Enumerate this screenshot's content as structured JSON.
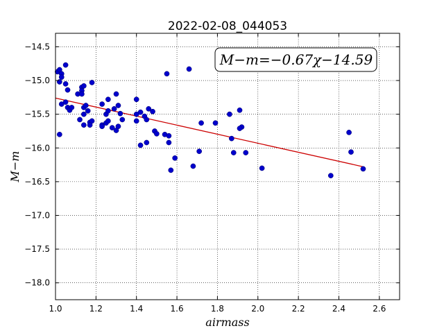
{
  "chart_data": {
    "type": "scatter",
    "title": "2022-02-08_044053",
    "xlabel": "airmass",
    "ylabel": "M−m",
    "annotation": "M−m=−0.67χ−14.59",
    "xlim": [
      1.0,
      2.7
    ],
    "ylim": [
      -18.25,
      -14.3
    ],
    "y_inverted": true,
    "grid": true,
    "xticks": [
      "1.0",
      "1.2",
      "1.4",
      "1.6",
      "1.8",
      "2.0",
      "2.2",
      "2.4",
      "2.6"
    ],
    "xtick_values": [
      1.0,
      1.2,
      1.4,
      1.6,
      1.8,
      2.0,
      2.2,
      2.4,
      2.6
    ],
    "yticks": [
      "−14.5",
      "−15.0",
      "−15.5",
      "−16.0",
      "−16.5",
      "−17.0",
      "−17.5",
      "−18.0"
    ],
    "ytick_values": [
      -14.5,
      -15.0,
      -15.5,
      -16.0,
      -16.5,
      -17.0,
      -17.5,
      -18.0
    ],
    "marker_color": "#0000cc",
    "fit_color": "#cc0000",
    "fit": {
      "slope": -0.67,
      "intercept": -14.59,
      "x_range": [
        1.0,
        2.52
      ]
    },
    "points": [
      [
        1.01,
        -14.87
      ],
      [
        1.02,
        -14.84
      ],
      [
        1.03,
        -14.9
      ],
      [
        1.03,
        -14.95
      ],
      [
        1.02,
        -15.02
      ],
      [
        1.05,
        -14.77
      ],
      [
        1.05,
        -15.05
      ],
      [
        1.06,
        -15.14
      ],
      [
        1.03,
        -15.35
      ],
      [
        1.05,
        -15.32
      ],
      [
        1.06,
        -15.4
      ],
      [
        1.07,
        -15.44
      ],
      [
        1.08,
        -15.4
      ],
      [
        1.02,
        -15.8
      ],
      [
        1.11,
        -15.2
      ],
      [
        1.13,
        -15.1
      ],
      [
        1.14,
        -15.08
      ],
      [
        1.13,
        -15.15
      ],
      [
        1.13,
        -15.2
      ],
      [
        1.18,
        -15.03
      ],
      [
        1.14,
        -15.4
      ],
      [
        1.15,
        -15.37
      ],
      [
        1.16,
        -15.45
      ],
      [
        1.14,
        -15.5
      ],
      [
        1.12,
        -15.58
      ],
      [
        1.14,
        -15.66
      ],
      [
        1.17,
        -15.62
      ],
      [
        1.18,
        -15.6
      ],
      [
        1.17,
        -15.66
      ],
      [
        1.23,
        -15.35
      ],
      [
        1.25,
        -15.5
      ],
      [
        1.26,
        -15.45
      ],
      [
        1.26,
        -15.28
      ],
      [
        1.3,
        -15.2
      ],
      [
        1.31,
        -15.37
      ],
      [
        1.29,
        -15.42
      ],
      [
        1.32,
        -15.49
      ],
      [
        1.23,
        -15.66
      ],
      [
        1.23,
        -15.68
      ],
      [
        1.25,
        -15.63
      ],
      [
        1.26,
        -15.6
      ],
      [
        1.28,
        -15.7
      ],
      [
        1.3,
        -15.74
      ],
      [
        1.31,
        -15.68
      ],
      [
        1.33,
        -15.58
      ],
      [
        1.4,
        -15.28
      ],
      [
        1.4,
        -15.5
      ],
      [
        1.42,
        -15.47
      ],
      [
        1.44,
        -15.53
      ],
      [
        1.4,
        -15.6
      ],
      [
        1.46,
        -15.42
      ],
      [
        1.48,
        -15.46
      ],
      [
        1.45,
        -15.58
      ],
      [
        1.49,
        -15.75
      ],
      [
        1.5,
        -15.79
      ],
      [
        1.42,
        -15.96
      ],
      [
        1.45,
        -15.92
      ],
      [
        1.54,
        -15.8
      ],
      [
        1.56,
        -15.82
      ],
      [
        1.56,
        -15.92
      ],
      [
        1.55,
        -14.9
      ],
      [
        1.66,
        -14.83
      ],
      [
        1.72,
        -15.63
      ],
      [
        1.79,
        -15.63
      ],
      [
        1.59,
        -16.15
      ],
      [
        1.57,
        -16.33
      ],
      [
        1.68,
        -16.27
      ],
      [
        1.71,
        -16.05
      ],
      [
        1.86,
        -15.5
      ],
      [
        1.87,
        -15.86
      ],
      [
        1.88,
        -16.07
      ],
      [
        1.91,
        -15.44
      ],
      [
        1.92,
        -15.69
      ],
      [
        1.91,
        -15.71
      ],
      [
        1.94,
        -16.07
      ],
      [
        2.02,
        -16.3
      ],
      [
        2.36,
        -16.41
      ],
      [
        2.45,
        -15.77
      ],
      [
        2.46,
        -16.06
      ],
      [
        2.52,
        -16.31
      ]
    ]
  }
}
